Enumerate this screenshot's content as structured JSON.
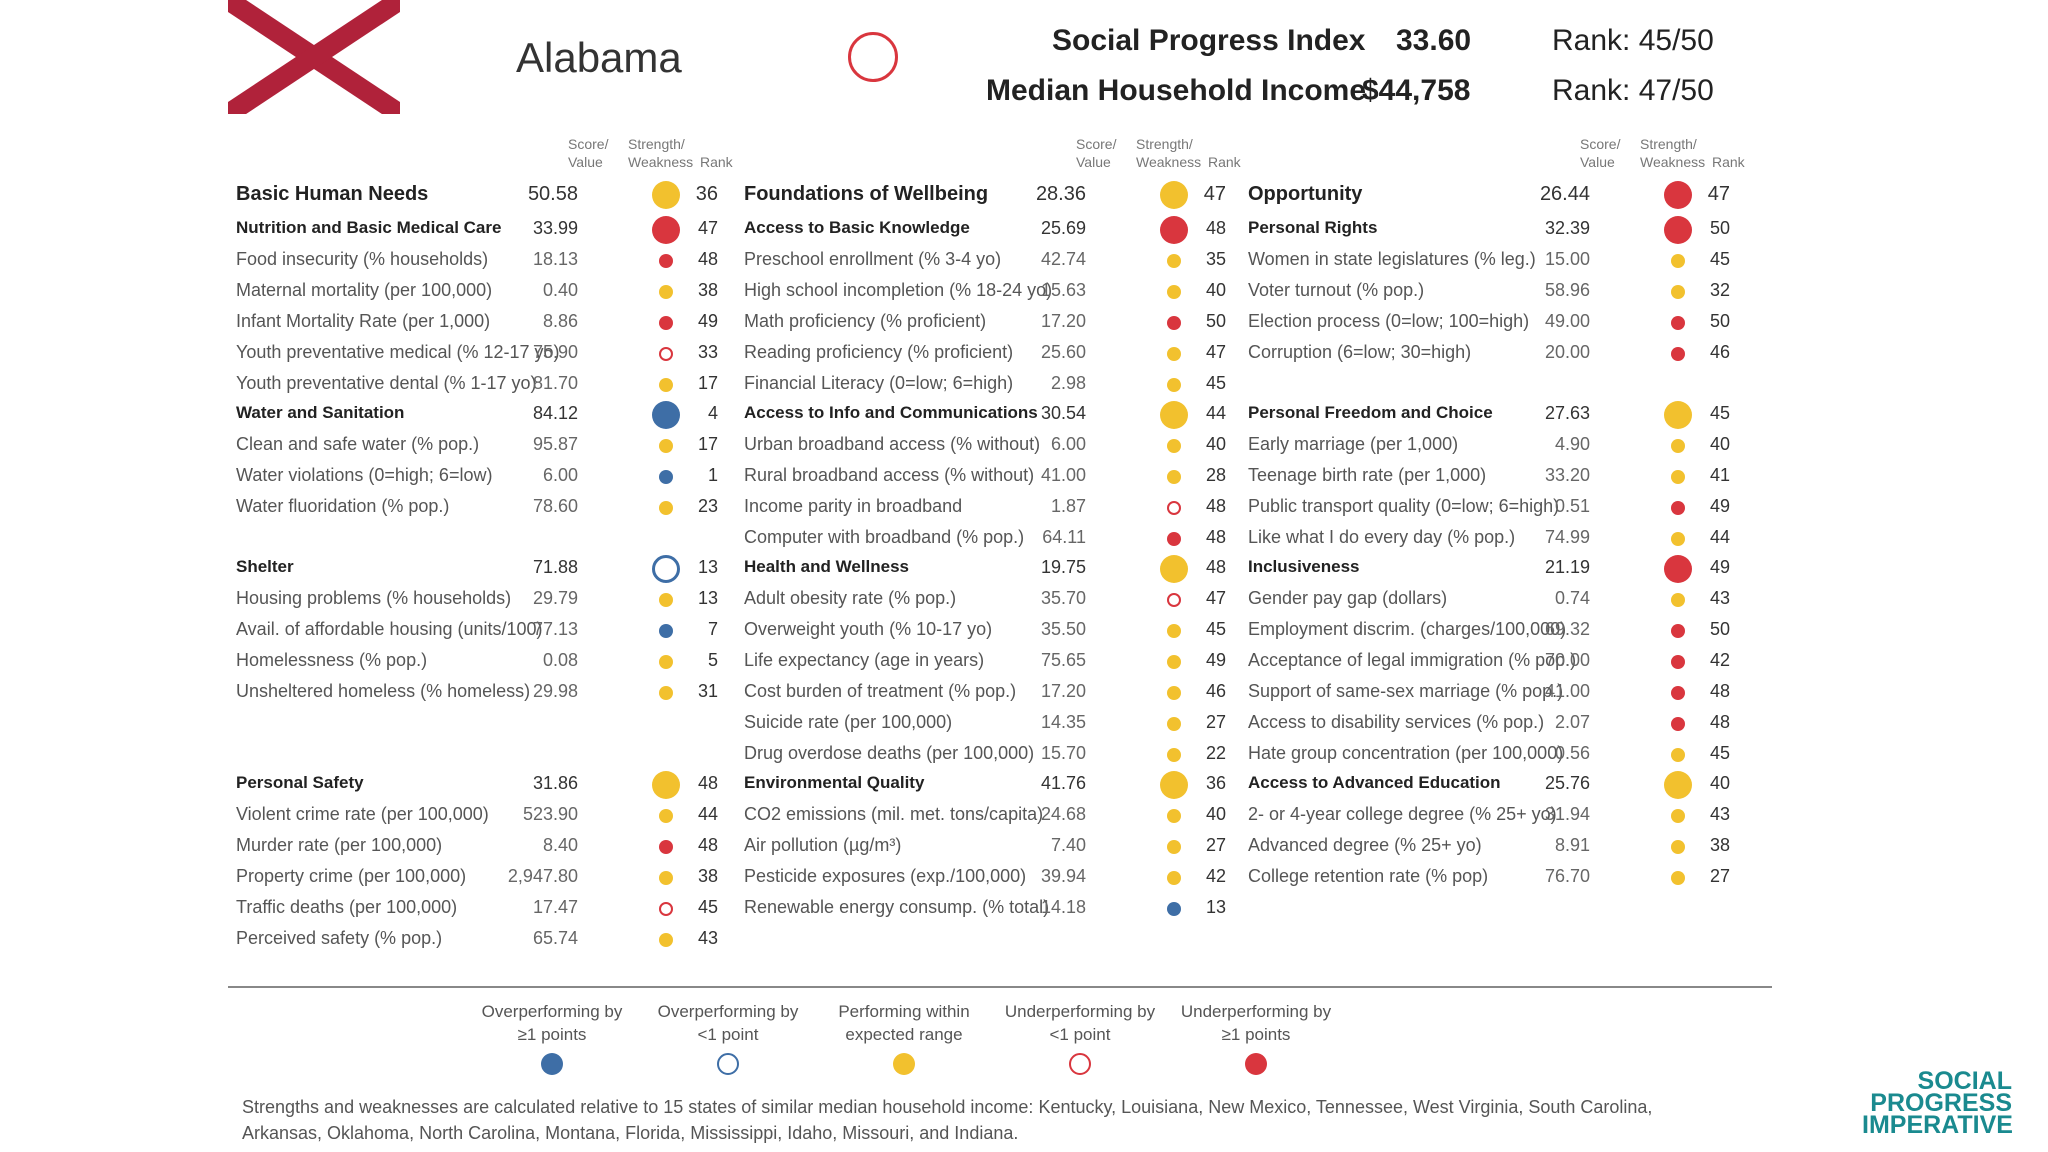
{
  "state": {
    "name": "Alabama",
    "icon": "alabama-flag-icon"
  },
  "header": {
    "spi_label": "Social Progress Index",
    "spi_value": "33.60",
    "spi_rank": "Rank: 45/50",
    "income_label": "Median Household Income",
    "income_value": "$44,758",
    "income_rank": "Rank: 47/50"
  },
  "col_headers": {
    "score": "Score/",
    "value": "Value",
    "strength": "Strength/",
    "weakness": "Weakness",
    "rank": "Rank"
  },
  "colors": {
    "blue": "#3e6ea6",
    "yellow": "#f2c12e",
    "red": "#d9363e"
  },
  "columns": [
    {
      "rows": [
        {
          "t": "dim",
          "label": "Basic Human Needs",
          "value": "50.58",
          "dot": "yellow",
          "rank": "36"
        },
        {
          "t": "comp",
          "label": "Nutrition and Basic Medical Care",
          "value": "33.99",
          "dot": "red",
          "rank": "47"
        },
        {
          "t": "ind",
          "label": "Food insecurity (% households)",
          "value": "18.13",
          "dot": "red",
          "rank": "48"
        },
        {
          "t": "ind",
          "label": "Maternal mortality (per 100,000)",
          "value": "0.40",
          "dot": "yellow",
          "rank": "38"
        },
        {
          "t": "ind",
          "label": "Infant Mortality Rate (per 1,000)",
          "value": "8.86",
          "dot": "red",
          "rank": "49"
        },
        {
          "t": "ind",
          "label": "Youth preventative medical (% 12-17 yo)",
          "value": "75.90",
          "dot": "red-ring",
          "rank": "33"
        },
        {
          "t": "ind",
          "label": "Youth preventative dental (% 1-17 yo)",
          "value": "81.70",
          "dot": "yellow",
          "rank": "17"
        },
        {
          "t": "comp",
          "label": "Water and Sanitation",
          "value": "84.12",
          "dot": "blue",
          "rank": "4"
        },
        {
          "t": "ind",
          "label": "Clean and safe water (% pop.)",
          "value": "95.87",
          "dot": "yellow",
          "rank": "17"
        },
        {
          "t": "ind",
          "label": "Water violations (0=high; 6=low)",
          "value": "6.00",
          "dot": "blue",
          "rank": "1"
        },
        {
          "t": "ind",
          "label": "Water fluoridation (% pop.)",
          "value": "78.60",
          "dot": "yellow",
          "rank": "23"
        },
        {
          "t": "gap"
        },
        {
          "t": "comp",
          "label": "Shelter",
          "value": "71.88",
          "dot": "blue-ring",
          "rank": "13"
        },
        {
          "t": "ind",
          "label": "Housing problems (% households)",
          "value": "29.79",
          "dot": "yellow",
          "rank": "13"
        },
        {
          "t": "ind",
          "label": "Avail. of affordable housing (units/100)",
          "value": "77.13",
          "dot": "blue",
          "rank": "7"
        },
        {
          "t": "ind",
          "label": "Homelessness (% pop.)",
          "value": "0.08",
          "dot": "yellow",
          "rank": "5"
        },
        {
          "t": "ind",
          "label": "Unsheltered homeless (% homeless)",
          "value": "29.98",
          "dot": "yellow",
          "rank": "31"
        },
        {
          "t": "gap"
        },
        {
          "t": "gap"
        },
        {
          "t": "comp",
          "label": "Personal Safety",
          "value": "31.86",
          "dot": "yellow",
          "rank": "48"
        },
        {
          "t": "ind",
          "label": "Violent crime rate (per 100,000)",
          "value": "523.90",
          "dot": "yellow",
          "rank": "44"
        },
        {
          "t": "ind",
          "label": "Murder rate (per 100,000)",
          "value": "8.40",
          "dot": "red",
          "rank": "48"
        },
        {
          "t": "ind",
          "label": "Property crime (per 100,000)",
          "value": "2,947.80",
          "dot": "yellow",
          "rank": "38"
        },
        {
          "t": "ind",
          "label": "Traffic deaths (per 100,000)",
          "value": "17.47",
          "dot": "red-ring",
          "rank": "45"
        },
        {
          "t": "ind",
          "label": "Perceived safety (% pop.)",
          "value": "65.74",
          "dot": "yellow",
          "rank": "43"
        }
      ]
    },
    {
      "rows": [
        {
          "t": "dim",
          "label": "Foundations of Wellbeing",
          "value": "28.36",
          "dot": "yellow",
          "rank": "47"
        },
        {
          "t": "comp",
          "label": "Access to Basic Knowledge",
          "value": "25.69",
          "dot": "red",
          "rank": "48"
        },
        {
          "t": "ind",
          "label": "Preschool enrollment (% 3-4 yo)",
          "value": "42.74",
          "dot": "yellow",
          "rank": "35"
        },
        {
          "t": "ind",
          "label": "High school incompletion (% 18-24 yo)",
          "value": "15.63",
          "dot": "yellow",
          "rank": "40"
        },
        {
          "t": "ind",
          "label": "Math proficiency (% proficient)",
          "value": "17.20",
          "dot": "red",
          "rank": "50"
        },
        {
          "t": "ind",
          "label": "Reading proficiency (% proficient)",
          "value": "25.60",
          "dot": "yellow",
          "rank": "47"
        },
        {
          "t": "ind",
          "label": "Financial Literacy (0=low; 6=high)",
          "value": "2.98",
          "dot": "yellow",
          "rank": "45"
        },
        {
          "t": "comp",
          "label": "Access to Info and Communications",
          "value": "30.54",
          "dot": "yellow",
          "rank": "44"
        },
        {
          "t": "ind",
          "label": "Urban broadband access (% without)",
          "value": "6.00",
          "dot": "yellow",
          "rank": "40"
        },
        {
          "t": "ind",
          "label": "Rural broadband access (% without)",
          "value": "41.00",
          "dot": "yellow",
          "rank": "28"
        },
        {
          "t": "ind",
          "label": "Income parity in broadband",
          "value": "1.87",
          "dot": "red-ring",
          "rank": "48"
        },
        {
          "t": "ind",
          "label": "Computer with broadband (% pop.)",
          "value": "64.11",
          "dot": "red",
          "rank": "48"
        },
        {
          "t": "comp",
          "label": "Health and Wellness",
          "value": "19.75",
          "dot": "yellow",
          "rank": "48"
        },
        {
          "t": "ind",
          "label": "Adult obesity rate (% pop.)",
          "value": "35.70",
          "dot": "red-ring",
          "rank": "47"
        },
        {
          "t": "ind",
          "label": "Overweight youth (% 10-17 yo)",
          "value": "35.50",
          "dot": "yellow",
          "rank": "45"
        },
        {
          "t": "ind",
          "label": "Life expectancy (age in years)",
          "value": "75.65",
          "dot": "yellow",
          "rank": "49"
        },
        {
          "t": "ind",
          "label": "Cost burden of treatment (% pop.)",
          "value": "17.20",
          "dot": "yellow",
          "rank": "46"
        },
        {
          "t": "ind",
          "label": "Suicide rate (per 100,000)",
          "value": "14.35",
          "dot": "yellow",
          "rank": "27"
        },
        {
          "t": "ind",
          "label": "Drug overdose deaths (per 100,000)",
          "value": "15.70",
          "dot": "yellow",
          "rank": "22"
        },
        {
          "t": "comp",
          "label": "Environmental Quality",
          "value": "41.76",
          "dot": "yellow",
          "rank": "36"
        },
        {
          "t": "ind",
          "label": "CO2 emissions (mil. met. tons/capita)",
          "value": "24.68",
          "dot": "yellow",
          "rank": "40"
        },
        {
          "t": "ind",
          "label": "Air pollution (µg/m³)",
          "value": "7.40",
          "dot": "yellow",
          "rank": "27"
        },
        {
          "t": "ind",
          "label": "Pesticide exposures (exp./100,000)",
          "value": "39.94",
          "dot": "yellow",
          "rank": "42"
        },
        {
          "t": "ind",
          "label": "Renewable energy consump. (% total)",
          "value": "14.18",
          "dot": "blue",
          "rank": "13"
        }
      ]
    },
    {
      "rows": [
        {
          "t": "dim",
          "label": "Opportunity",
          "value": "26.44",
          "dot": "red",
          "rank": "47"
        },
        {
          "t": "comp",
          "label": "Personal Rights",
          "value": "32.39",
          "dot": "red",
          "rank": "50"
        },
        {
          "t": "ind",
          "label": "Women in state legislatures (% leg.)",
          "value": "15.00",
          "dot": "yellow",
          "rank": "45"
        },
        {
          "t": "ind",
          "label": "Voter turnout (% pop.)",
          "value": "58.96",
          "dot": "yellow",
          "rank": "32"
        },
        {
          "t": "ind",
          "label": "Election process (0=low; 100=high)",
          "value": "49.00",
          "dot": "red",
          "rank": "50"
        },
        {
          "t": "ind",
          "label": "Corruption (6=low; 30=high)",
          "value": "20.00",
          "dot": "red",
          "rank": "46"
        },
        {
          "t": "gap"
        },
        {
          "t": "comp",
          "label": "Personal Freedom and Choice",
          "value": "27.63",
          "dot": "yellow",
          "rank": "45"
        },
        {
          "t": "ind",
          "label": "Early marriage (per 1,000)",
          "value": "4.90",
          "dot": "yellow",
          "rank": "40"
        },
        {
          "t": "ind",
          "label": "Teenage birth rate (per 1,000)",
          "value": "33.20",
          "dot": "yellow",
          "rank": "41"
        },
        {
          "t": "ind",
          "label": "Public transport quality (0=low; 6=high)",
          "value": "0.51",
          "dot": "red",
          "rank": "49"
        },
        {
          "t": "ind",
          "label": "Like what I do every day (% pop.)",
          "value": "74.99",
          "dot": "yellow",
          "rank": "44"
        },
        {
          "t": "comp",
          "label": "Inclusiveness",
          "value": "21.19",
          "dot": "red",
          "rank": "49"
        },
        {
          "t": "ind",
          "label": "Gender pay gap (dollars)",
          "value": "0.74",
          "dot": "yellow",
          "rank": "43"
        },
        {
          "t": "ind",
          "label": "Employment discrim. (charges/100,000)",
          "value": "69.32",
          "dot": "red",
          "rank": "50"
        },
        {
          "t": "ind",
          "label": "Acceptance of legal immigration (% pop.)",
          "value": "70.00",
          "dot": "red",
          "rank": "42"
        },
        {
          "t": "ind",
          "label": "Support of same-sex marriage (% pop.)",
          "value": "41.00",
          "dot": "red",
          "rank": "48"
        },
        {
          "t": "ind",
          "label": "Access to disability services (% pop.)",
          "value": "2.07",
          "dot": "red",
          "rank": "48"
        },
        {
          "t": "ind",
          "label": "Hate group concentration (per 100,000)",
          "value": "0.56",
          "dot": "yellow",
          "rank": "45"
        },
        {
          "t": "comp",
          "label": "Access to Advanced Education",
          "value": "25.76",
          "dot": "yellow",
          "rank": "40"
        },
        {
          "t": "ind",
          "label": "2- or 4-year college degree (% 25+ yo)",
          "value": "31.94",
          "dot": "yellow",
          "rank": "43"
        },
        {
          "t": "ind",
          "label": "Advanced degree (% 25+ yo)",
          "value": "8.91",
          "dot": "yellow",
          "rank": "38"
        },
        {
          "t": "ind",
          "label": "College retention rate (% pop)",
          "value": "76.70",
          "dot": "yellow",
          "rank": "27"
        }
      ]
    }
  ],
  "legend": [
    {
      "line1": "Overperforming by",
      "line2": "≥1 points",
      "dot": "blue"
    },
    {
      "line1": "Overperforming by",
      "line2": "<1 point",
      "dot": "blue-ring"
    },
    {
      "line1": "Performing within",
      "line2": "expected range",
      "dot": "yellow"
    },
    {
      "line1": "Underperforming by",
      "line2": "<1 point",
      "dot": "red-ring"
    },
    {
      "line1": "Underperforming by",
      "line2": "≥1 points",
      "dot": "red"
    }
  ],
  "footnote": "Strengths and weaknesses are calculated relative to 15 states of similar median household income: Kentucky, Louisiana, New Mexico, Tennessee, West Virginia, South Carolina, Arkansas, Oklahoma, North Carolina, Montana, Florida, Mississippi, Idaho, Missouri, and Indiana.",
  "logo": {
    "line1": "SOCIAL",
    "line2": "PROGRESS",
    "line3": "IMPERATIVE"
  }
}
